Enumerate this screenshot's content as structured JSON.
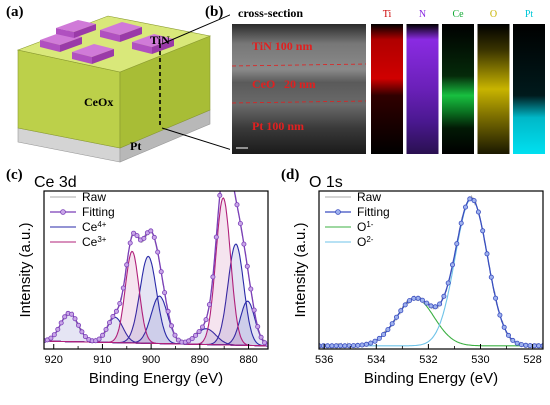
{
  "panel_a": {
    "label": "(a)",
    "layers": {
      "top": "TiN",
      "middle": "CeOx",
      "bottom": "Pt"
    }
  },
  "panel_b": {
    "label": "(b)",
    "title": "cross-section",
    "layers": [
      "TiN 100 nm",
      "CeO",
      "20 nm",
      "Pt 100 nm"
    ],
    "maps": [
      {
        "name": "Ti",
        "color": "#cc0000"
      },
      {
        "name": "N",
        "color": "#8a2be2"
      },
      {
        "name": "Ce",
        "color": "#11aa33"
      },
      {
        "name": "O",
        "color": "#c8b400"
      },
      {
        "name": "Pt",
        "color": "#00c8d8"
      }
    ],
    "colors": {
      "label_red": "#e02020",
      "label_magenta": "#a01090"
    }
  },
  "chart_data": [
    {
      "type": "line",
      "panel": "(c)",
      "title": "Ce 3d",
      "xlabel": "Binding Energy (eV)",
      "ylabel": "Intensity (a.u.)",
      "xlim": [
        922,
        876
      ],
      "x_reversed": true,
      "xticks": [
        920,
        910,
        900,
        890,
        880
      ],
      "legend": {
        "placement": "top-left",
        "entries": [
          "Raw",
          "Fitting",
          "Ce4+",
          "Ce3+"
        ]
      },
      "components": {
        "Ce4+": [
          {
            "center": 916.8,
            "height": 0.18,
            "width": 1.8
          },
          {
            "center": 907.4,
            "height": 0.16,
            "width": 1.6
          },
          {
            "center": 900.6,
            "height": 0.55,
            "width": 1.7
          },
          {
            "center": 898.3,
            "height": 0.3,
            "width": 1.7
          },
          {
            "center": 888.7,
            "height": 0.1,
            "width": 2.0
          },
          {
            "center": 882.6,
            "height": 0.64,
            "width": 1.6
          },
          {
            "center": 880.2,
            "height": 0.28,
            "width": 1.5
          }
        ],
        "Ce3+": [
          {
            "center": 903.9,
            "height": 0.58,
            "width": 1.4
          },
          {
            "center": 885.2,
            "height": 0.93,
            "width": 1.5
          }
        ]
      },
      "colors": {
        "raw": "#aaaaaa",
        "fit": "#7b3fb8",
        "ce4": "#2a2aa8",
        "ce3": "#b0207a"
      }
    },
    {
      "type": "line",
      "panel": "(d)",
      "title": "O 1s",
      "xlabel": "Binding Energy (eV)",
      "ylabel": "Intensity (a.u.)",
      "xlim": [
        536.2,
        527.6
      ],
      "x_reversed": true,
      "xticks": [
        536,
        534,
        532,
        530,
        528
      ],
      "legend": {
        "placement": "top-left",
        "entries": [
          "Raw",
          "Fitting",
          "O1-",
          "O2-"
        ]
      },
      "components": {
        "O1-": [
          {
            "center": 532.5,
            "height": 0.3,
            "width": 0.72
          }
        ],
        "O2-": [
          {
            "center": 530.35,
            "height": 0.93,
            "width": 0.62
          }
        ]
      },
      "colors": {
        "raw": "#aaaaaa",
        "fit": "#3a4ec0",
        "o1": "#3cb043",
        "o2": "#6fc3e8"
      }
    }
  ]
}
